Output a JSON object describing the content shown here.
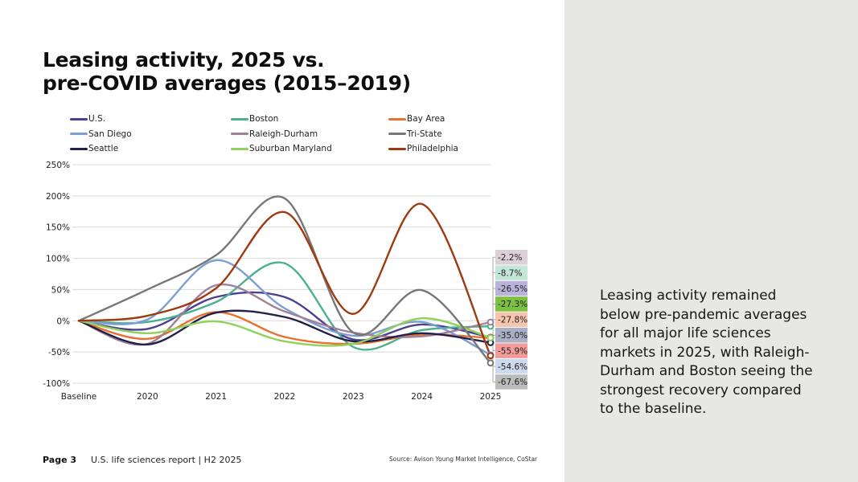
{
  "title": {
    "line1": "Leasing activity, 2025 vs.",
    "line2": "pre-COVID averages (2015–2019)"
  },
  "callout": "Leasing activity remained below pre-pandemic averages for all major life sciences markets in 2025, with Raleigh-Durham and Boston seeing the strongest recovery compared to the baseline.",
  "footer": {
    "page": "Page 3",
    "report": "U.S. life sciences report | H2 2025",
    "source": "Source: Avison Young Market Intelligence, CoStar"
  },
  "chart_data": {
    "type": "line",
    "title": "Leasing activity, 2025 vs. pre-COVID averages (2015–2019)",
    "xlabel": "",
    "ylabel": "",
    "categories": [
      "Baseline",
      "2020",
      "2021",
      "2022",
      "2023",
      "2024",
      "2025"
    ],
    "yticks": [
      "250%",
      "200%",
      "150%",
      "100%",
      "50%",
      "0%",
      "-50%",
      "-100%"
    ],
    "ytick_values": [
      250,
      200,
      150,
      100,
      50,
      0,
      -50,
      -100
    ],
    "ylim": [
      -100,
      250
    ],
    "grid": true,
    "legend_position": "top",
    "series": [
      {
        "name": "U.S.",
        "color": "#4b3f8f",
        "values": [
          0,
          -13,
          38,
          38,
          -30,
          -6,
          -26.5
        ],
        "end_label": "-26.5%",
        "label_bg": "#b9b3dc"
      },
      {
        "name": "Boston",
        "color": "#4bb08e",
        "values": [
          0,
          -2,
          30,
          92,
          -42,
          -15,
          -8.7
        ],
        "end_label": "-8.7%",
        "label_bg": "#c3e6d8"
      },
      {
        "name": "Bay Area",
        "color": "#e8712f",
        "values": [
          0,
          -29,
          14,
          -26,
          -37,
          -22,
          -27.8
        ],
        "end_label": "-27.8%",
        "label_bg": "#f6c5ad"
      },
      {
        "name": "San Diego",
        "color": "#7b9fd4",
        "values": [
          0,
          2,
          97,
          20,
          -24,
          -2,
          -54.6
        ],
        "end_label": "-54.6%",
        "label_bg": "#cdd9ee"
      },
      {
        "name": "Raleigh-Durham",
        "color": "#a07f9b",
        "values": [
          0,
          -37,
          57,
          15,
          -19,
          -25,
          -2.2
        ],
        "end_label": "-2.2%",
        "label_bg": "#dccfd8"
      },
      {
        "name": "Tri-State",
        "color": "#7a7676",
        "values": [
          0,
          50,
          105,
          196,
          -19,
          49,
          -67.6
        ],
        "end_label": "-67.6%",
        "label_bg": "#bdbcbc"
      },
      {
        "name": "Seattle",
        "color": "#24204a",
        "values": [
          0,
          -38,
          13,
          6,
          -33,
          -20,
          -35.0
        ],
        "end_label": "-35.0%",
        "label_bg": "#a9afc4"
      },
      {
        "name": "Suburban Maryland",
        "color": "#8fd15a",
        "values": [
          0,
          -20,
          -1,
          -33,
          -37,
          4,
          -27.3
        ],
        "end_label": "-27.3%",
        "label_bg": "#7dc043"
      },
      {
        "name": "Philadelphia",
        "color": "#9e3a10",
        "values": [
          0,
          8,
          52,
          174,
          11,
          187,
          -55.9
        ],
        "end_label": "-55.9%",
        "label_bg": "#f29b9b"
      }
    ],
    "end_label_order": [
      "-2.2%",
      "-8.7%",
      "-26.5%",
      "-27.3%",
      "-27.8%",
      "-35.0%",
      "-55.9%",
      "-54.6%",
      "-67.6%"
    ]
  }
}
